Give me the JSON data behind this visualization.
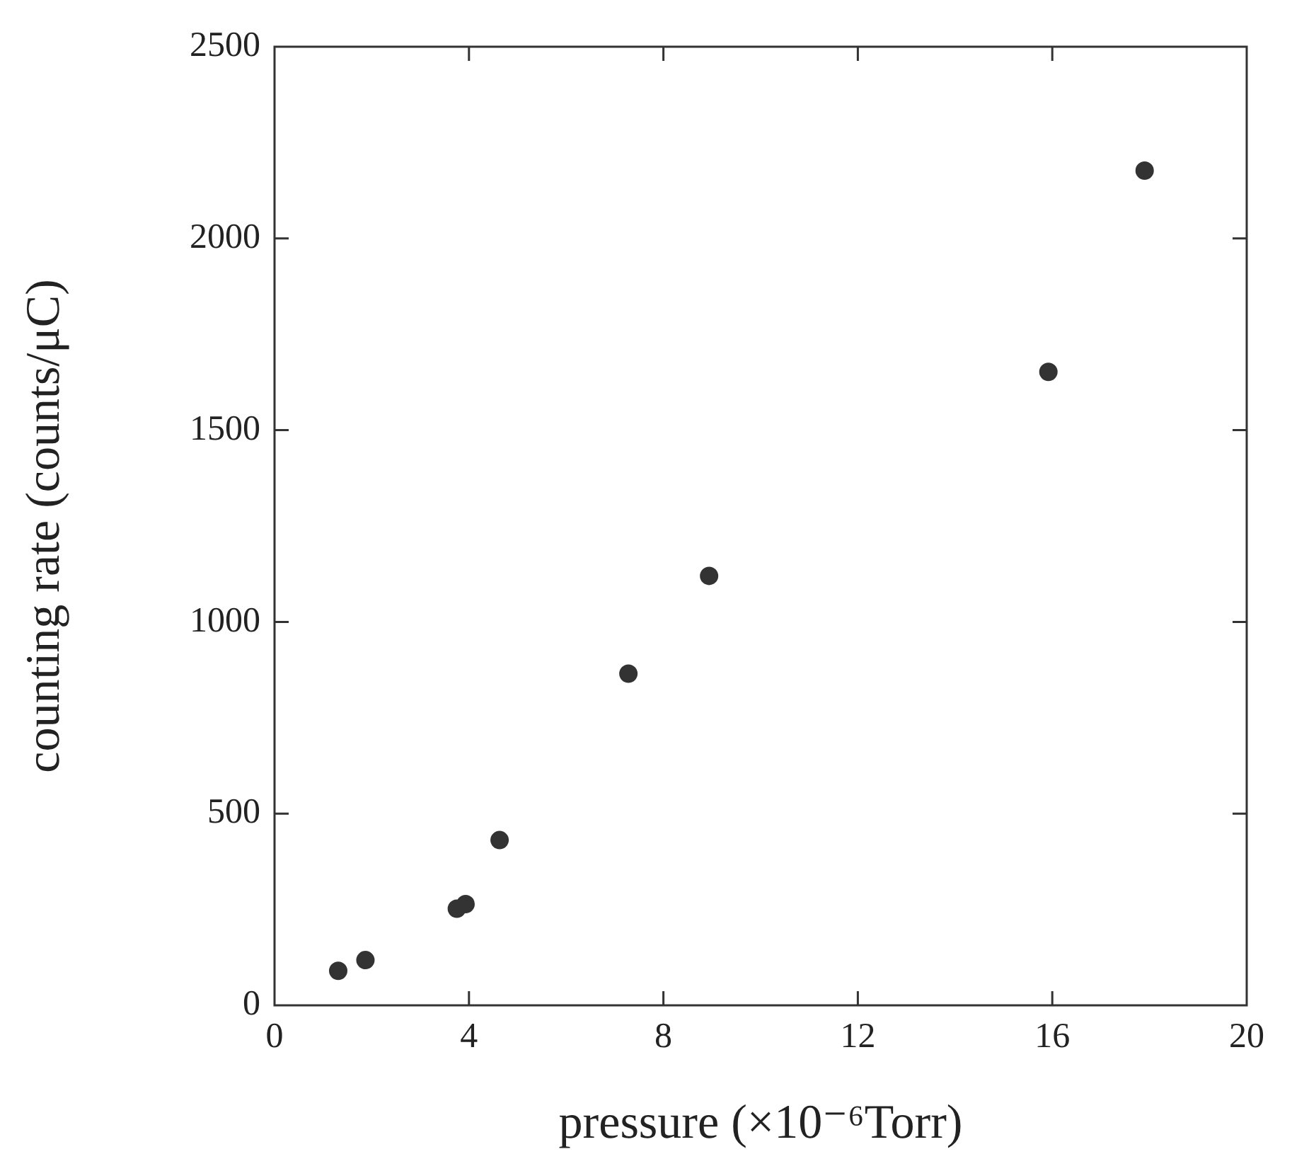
{
  "chart_data": {
    "type": "scatter",
    "xlabel": "pressure (×10⁻⁶Torr)",
    "ylabel": "counting rate (counts/μC)",
    "marker": "circle",
    "grid": false,
    "legend": false,
    "xlim": [
      0,
      20
    ],
    "xticks": [
      0,
      4,
      8,
      12,
      16,
      20
    ],
    "ylim": [
      0,
      2500
    ],
    "yticks": [
      0,
      500,
      1000,
      1500,
      2000,
      2500
    ],
    "series": [
      {
        "color": "#333333",
        "x": [
          1.31,
          1.87,
          3.75,
          3.93,
          4.63,
          7.28,
          8.94,
          15.92,
          17.9
        ],
        "values": [
          90,
          118,
          252,
          264,
          431,
          865,
          1120,
          1652,
          2177
        ]
      }
    ]
  }
}
